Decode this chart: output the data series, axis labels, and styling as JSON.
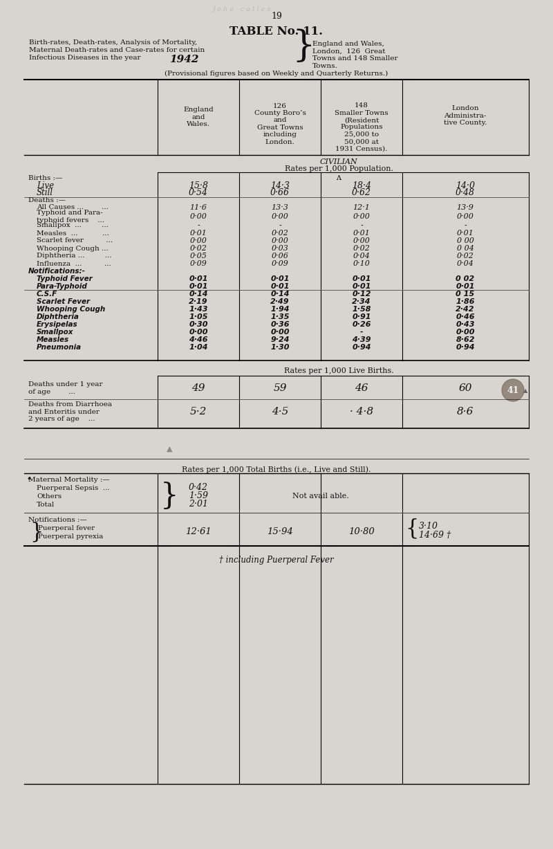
{
  "page_num": "19",
  "bg_color": "#d8d4cf",
  "text_color": "#111111",
  "table_title": "TABLE No. 11.",
  "subtitle_left_lines": [
    "Birth-rates, Death-rates, Analysis of Mortality,",
    "Maternal Death-rates and Case-rates for certain",
    "Infectious Diseases in the year "
  ],
  "year": "1942",
  "subtitle_right_lines": [
    "England and Wales,",
    "London,  126  Great",
    "Towns and 148 Smaller",
    "Towns."
  ],
  "provisional": "(Provisional figures based on Weekly and Quarterly Returns.)",
  "col_headers": [
    "England\nand\nWales.",
    "126\nCounty Boro’s\nand\nGreat Towns\nincluding\nLondon.",
    "148\nSmaller Towns\n(Resident\nPopulations\n25,000 to\n50,000 at\n1931 Census).",
    "London\nAdministra-\ntive County."
  ],
  "civilian_label": "CIVILIAN",
  "civilian_sub": "Rates per 1,000 Population.",
  "rows_section1": [
    {
      "label": "Births :—",
      "vals": [
        "",
        "",
        "",
        ""
      ],
      "style": "sc",
      "indent": false
    },
    {
      "label": "Live",
      "vals": [
        "15·8",
        "14·3",
        "18·4",
        "14·0"
      ],
      "style": "italic_large",
      "indent": true
    },
    {
      "label": "Still",
      "vals": [
        "0·54",
        "0·66",
        "0·62",
        "0·48"
      ],
      "style": "italic_large",
      "indent": true
    },
    {
      "label": "Deaths :—",
      "vals": [
        "",
        "",
        "",
        ""
      ],
      "style": "sc",
      "indent": false
    },
    {
      "label": "All Causes ...        ...",
      "vals": [
        "11·6",
        "13·3",
        "12·1",
        "13·9"
      ],
      "style": "normal",
      "indent": true
    },
    {
      "label": "Typhoid and Para-\ntyphoid fevers    ...",
      "vals": [
        "0·00",
        "0·00",
        "0·00",
        "0·00"
      ],
      "style": "normal",
      "indent": true
    },
    {
      "label": "Smallpox  ...         ...",
      "vals": [
        "-",
        "-",
        "-",
        "-"
      ],
      "style": "normal",
      "indent": true
    },
    {
      "label": "Measles  ...           ...",
      "vals": [
        "0·01",
        "0·02",
        "0·01",
        "0·01"
      ],
      "style": "normal",
      "indent": true
    },
    {
      "label": "Scarlet fever          ...",
      "vals": [
        "0·00",
        "0·00",
        "0·00",
        "0 00"
      ],
      "style": "normal",
      "indent": true
    },
    {
      "label": "Whooping Cough ...",
      "vals": [
        "0·02",
        "0·03",
        "0·02",
        "0 04"
      ],
      "style": "normal",
      "indent": true
    },
    {
      "label": "Diphtheria ...         ...",
      "vals": [
        "0·05",
        "0·06",
        "0·04",
        "0·02"
      ],
      "style": "normal",
      "indent": true
    },
    {
      "label": "Influenza  ...          ...",
      "vals": [
        "0·09",
        "0·09",
        "0·10",
        "0·04"
      ],
      "style": "normal",
      "indent": true
    },
    {
      "label": "Notifications:-",
      "vals": [
        "",
        "",
        "",
        ""
      ],
      "style": "bold_italic",
      "indent": false
    },
    {
      "label": "Typhoid Fever",
      "vals": [
        "0·01",
        "0·01",
        "0·01",
        "0 02"
      ],
      "style": "bold_italic",
      "indent": true
    },
    {
      "label": "Para-Typhoid",
      "vals": [
        "0·01",
        "0·01",
        "0·01",
        "0·01"
      ],
      "style": "bold_italic",
      "indent": true
    },
    {
      "label": "C.S.F",
      "vals": [
        "0·14",
        "0·14",
        "0·12",
        "0 15"
      ],
      "style": "bold_italic",
      "indent": true
    },
    {
      "label": "Scarlet Fever",
      "vals": [
        "2·19",
        "2·49",
        "2·34",
        "1·86"
      ],
      "style": "bold_italic",
      "indent": true
    },
    {
      "label": "Whooping Cough",
      "vals": [
        "1·43",
        "1·94",
        "1·58",
        "2·42"
      ],
      "style": "bold_italic",
      "indent": true
    },
    {
      "label": "Diphtheria",
      "vals": [
        "1·05",
        "1·35",
        "0·91",
        "0·46"
      ],
      "style": "bold_italic",
      "indent": true
    },
    {
      "label": "Erysipelas",
      "vals": [
        "0·30",
        "0·36",
        "0·26",
        "0·43"
      ],
      "style": "bold_italic",
      "indent": true
    },
    {
      "label": "Smallpox",
      "vals": [
        "0·00",
        "0·00",
        "-",
        "0·00"
      ],
      "style": "bold_italic",
      "indent": true
    },
    {
      "label": "Measles",
      "vals": [
        "4·46",
        "9·24",
        "4·39",
        "8·62"
      ],
      "style": "bold_italic",
      "indent": true
    },
    {
      "label": "Pneumonia",
      "vals": [
        "1·04",
        "1·30",
        "0·94",
        "0·94"
      ],
      "style": "bold_italic",
      "indent": true
    }
  ],
  "live_births_label": "Rates per 1,000 Live Births.",
  "lb_row1_label": "Deaths under 1 year\nof age        ...",
  "lb_row1_vals": [
    "49",
    "59",
    "46",
    "60"
  ],
  "lb_row2_label": "Deaths from Diarrhoea\nand Enteritis under\n2 years of age    ...",
  "lb_row2_vals": [
    "5·2",
    "4·5",
    "· 4·8",
    "8·6"
  ],
  "total_births_label": "Rates per 1,000 Total Births (i.e., Live and Still).",
  "mat_mort_label": "Maternal Mortality :—",
  "mat_rows": [
    {
      "label": "Puerperal Sepsis  ...",
      "val": "0·42"
    },
    {
      "label": "Others",
      "val": "1·59"
    },
    {
      "label": "Total",
      "val": "2·01"
    }
  ],
  "not_available": "Not avail able.",
  "notif_label": "Notifications :—",
  "notif_row1": "Puerperal fever",
  "notif_row2": "Puerperal pyrexia",
  "notif_vals": [
    "12·61",
    "15·94",
    "10·80"
  ],
  "notif_last_vals": [
    "3·10",
    "14·69 †"
  ],
  "footnote": "† including Puerperal Fever"
}
